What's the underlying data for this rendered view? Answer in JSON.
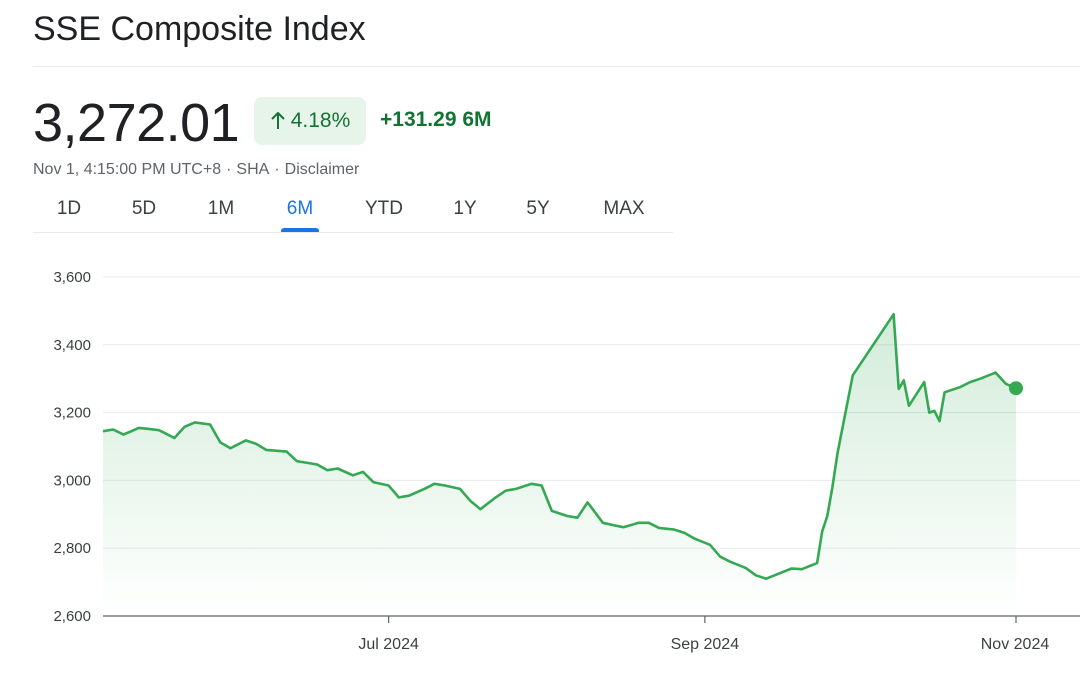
{
  "header": {
    "title": "SSE Composite Index",
    "price": "3,272.01",
    "percent_change": "4.18%",
    "absolute_change": "+131.29",
    "period_label": "6M",
    "meta_time": "Nov 1, 4:15:00 PM UTC+8",
    "meta_exchange": "SHA",
    "meta_disclaimer": "Disclaimer",
    "meta_separator": "·",
    "up_arrow_icon": "arrow-up-icon"
  },
  "tabs": [
    {
      "label": "1D",
      "active": false
    },
    {
      "label": "5D",
      "active": false
    },
    {
      "label": "1M",
      "active": false
    },
    {
      "label": "6M",
      "active": true
    },
    {
      "label": "YTD",
      "active": false
    },
    {
      "label": "1Y",
      "active": false
    },
    {
      "label": "5Y",
      "active": false
    },
    {
      "label": "MAX",
      "active": false
    }
  ],
  "colors": {
    "line": "#34a853",
    "positive_text": "#137333",
    "badge_bg": "#e6f4ea",
    "active_tab": "#1a73e8",
    "grid": "#e8eaed"
  },
  "chart_data": {
    "type": "area",
    "title": "",
    "xlabel": "",
    "ylabel": "",
    "ylim": [
      2600,
      3600
    ],
    "y_ticks": [
      "2,600",
      "2,800",
      "3,000",
      "3,200",
      "3,400",
      "3,600"
    ],
    "y_tick_values": [
      2600,
      2800,
      3000,
      3200,
      3400,
      3600
    ],
    "x_ticks": [
      {
        "label": "Jul 2024",
        "date": "2024-07-01"
      },
      {
        "label": "Sep 2024",
        "date": "2024-09-01"
      },
      {
        "label": "Nov 2024",
        "date": "2024-11-01"
      }
    ],
    "x_range": [
      "2024-05-06",
      "2024-11-01"
    ],
    "grid": true,
    "series": [
      {
        "x": [
          "2024-05-06",
          "2024-05-08",
          "2024-05-10",
          "2024-05-13",
          "2024-05-15",
          "2024-05-17",
          "2024-05-20",
          "2024-05-22",
          "2024-05-24",
          "2024-05-27",
          "2024-05-29",
          "2024-05-31",
          "2024-06-03",
          "2024-06-05",
          "2024-06-07",
          "2024-06-11",
          "2024-06-13",
          "2024-06-17",
          "2024-06-19",
          "2024-06-21",
          "2024-06-24",
          "2024-06-26",
          "2024-06-28",
          "2024-07-01",
          "2024-07-03",
          "2024-07-05",
          "2024-07-08",
          "2024-07-10",
          "2024-07-12",
          "2024-07-15",
          "2024-07-17",
          "2024-07-19",
          "2024-07-22",
          "2024-07-24",
          "2024-07-26",
          "2024-07-29",
          "2024-07-31",
          "2024-08-02",
          "2024-08-05",
          "2024-08-07",
          "2024-08-09",
          "2024-08-12",
          "2024-08-14",
          "2024-08-16",
          "2024-08-19",
          "2024-08-21",
          "2024-08-23",
          "2024-08-26",
          "2024-08-28",
          "2024-08-30",
          "2024-09-02",
          "2024-09-04",
          "2024-09-06",
          "2024-09-09",
          "2024-09-11",
          "2024-09-13",
          "2024-09-18",
          "2024-09-20",
          "2024-09-23",
          "2024-09-24",
          "2024-09-25",
          "2024-09-26",
          "2024-09-27",
          "2024-09-30",
          "2024-10-08",
          "2024-10-09",
          "2024-10-10",
          "2024-10-11",
          "2024-10-14",
          "2024-10-15",
          "2024-10-16",
          "2024-10-17",
          "2024-10-18",
          "2024-10-21",
          "2024-10-23",
          "2024-10-25",
          "2024-10-28",
          "2024-10-30",
          "2024-11-01"
        ],
        "values": [
          3145,
          3150,
          3135,
          3155,
          3152,
          3148,
          3125,
          3158,
          3171,
          3165,
          3112,
          3095,
          3118,
          3108,
          3090,
          3085,
          3057,
          3047,
          3030,
          3035,
          3015,
          3025,
          2995,
          2985,
          2950,
          2955,
          2975,
          2990,
          2985,
          2975,
          2940,
          2915,
          2950,
          2970,
          2975,
          2990,
          2985,
          2910,
          2895,
          2890,
          2935,
          2875,
          2868,
          2862,
          2875,
          2875,
          2860,
          2855,
          2845,
          2828,
          2810,
          2775,
          2760,
          2742,
          2720,
          2710,
          2740,
          2738,
          2756,
          2850,
          2895,
          2980,
          3080,
          3310,
          3490,
          3270,
          3295,
          3220,
          3290,
          3200,
          3205,
          3175,
          3260,
          3275,
          3290,
          3300,
          3318,
          3285,
          3272
        ]
      }
    ],
    "last_value": 3272.01
  }
}
